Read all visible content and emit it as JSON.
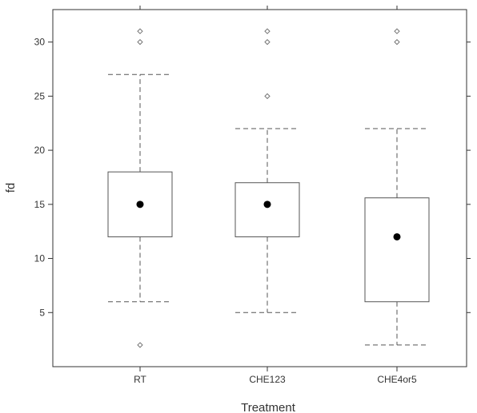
{
  "chart_data": {
    "type": "box",
    "xlabel": "Treatment",
    "ylabel": "fd",
    "ylim": [
      0,
      33
    ],
    "yticks": [
      5,
      10,
      15,
      20,
      25,
      30
    ],
    "categories": [
      "RT",
      "CHE123",
      "CHE4or5"
    ],
    "boxes": [
      {
        "category": "RT",
        "whisker_low": 6,
        "q1": 12,
        "median": 15,
        "q3": 18,
        "whisker_high": 27,
        "outliers": [
          2,
          30,
          31
        ]
      },
      {
        "category": "CHE123",
        "whisker_low": 5,
        "q1": 12,
        "median": 15,
        "q3": 17,
        "whisker_high": 22,
        "outliers": [
          25,
          30,
          31
        ]
      },
      {
        "category": "CHE4or5",
        "whisker_low": 2,
        "q1": 6,
        "median": 12,
        "q3": 15.6,
        "whisker_high": 22,
        "outliers": [
          30,
          31
        ]
      }
    ],
    "median_marker": "filled-dot",
    "outlier_marker": "open-diamond",
    "grid": false,
    "legend": "none",
    "colors": {
      "box": "#555555",
      "whisker": "#555555",
      "median": "#000000",
      "outlier": "#777777",
      "axis": "#333333"
    }
  }
}
